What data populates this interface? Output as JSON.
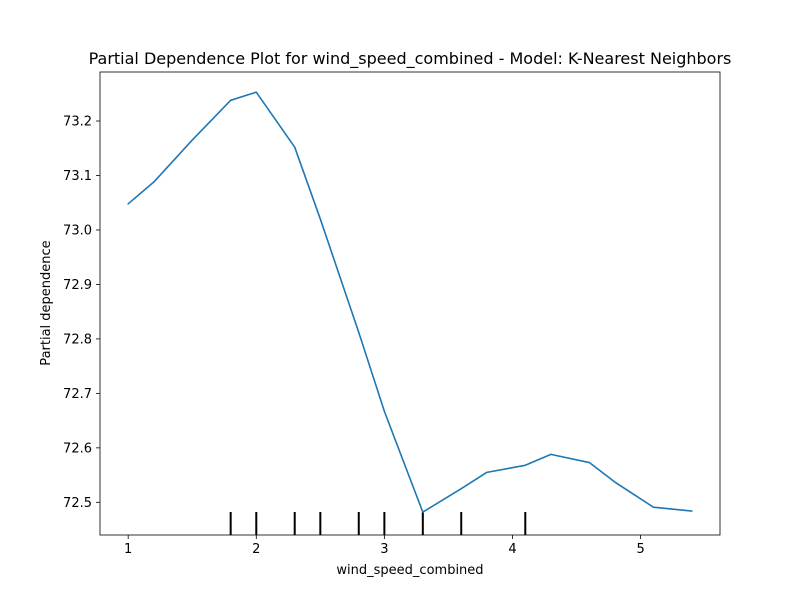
{
  "chart_data": {
    "type": "line",
    "title": "Partial Dependence Plot for wind_speed_combined - Model: K-Nearest Neighbors",
    "xlabel": "wind_speed_combined",
    "ylabel": "Partial dependence",
    "xlim": [
      0.78,
      5.62
    ],
    "ylim": [
      72.44,
      73.29
    ],
    "x_ticks": [
      1,
      2,
      3,
      4,
      5
    ],
    "x_tick_labels": [
      "1",
      "2",
      "3",
      "4",
      "5"
    ],
    "y_ticks": [
      72.5,
      72.6,
      72.7,
      72.8,
      72.9,
      73.0,
      73.1,
      73.2
    ],
    "y_tick_labels": [
      "72.5",
      "72.6",
      "72.7",
      "72.8",
      "72.9",
      "73.0",
      "73.1",
      "73.2"
    ],
    "grid": false,
    "series": [
      {
        "color": "#1f77b4",
        "x": [
          1.0,
          1.2,
          1.5,
          1.8,
          2.0,
          2.3,
          2.5,
          2.8,
          3.0,
          3.3,
          3.6,
          3.8,
          4.1,
          4.3,
          4.6,
          4.8,
          5.1,
          5.4
        ],
        "y": [
          73.048,
          73.088,
          73.165,
          73.238,
          73.253,
          73.152,
          73.02,
          72.812,
          72.667,
          72.482,
          72.525,
          72.555,
          72.568,
          72.588,
          72.573,
          72.537,
          72.491,
          72.484
        ]
      }
    ],
    "rug": [
      1.8,
      2.0,
      2.3,
      2.5,
      2.8,
      3.0,
      3.3,
      3.6,
      4.1
    ]
  }
}
